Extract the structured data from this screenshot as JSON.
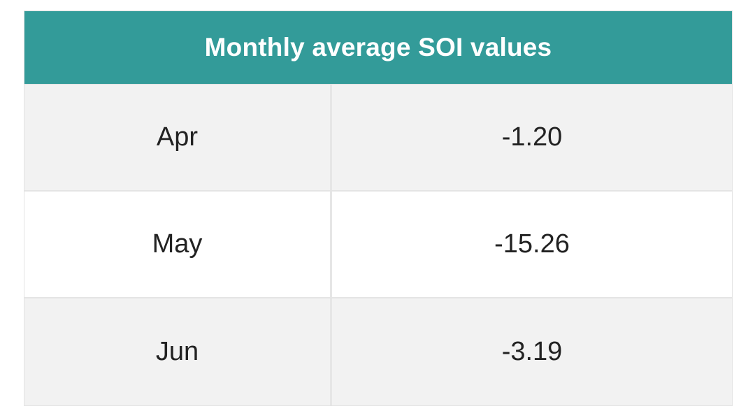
{
  "chart_data": {
    "type": "table",
    "title": "Monthly average SOI values",
    "header_color": "#339b99",
    "rows": [
      {
        "month": "Apr",
        "value": "-1.20"
      },
      {
        "month": "May",
        "value": "-15.26"
      },
      {
        "month": "Jun",
        "value": "-3.19"
      }
    ]
  }
}
